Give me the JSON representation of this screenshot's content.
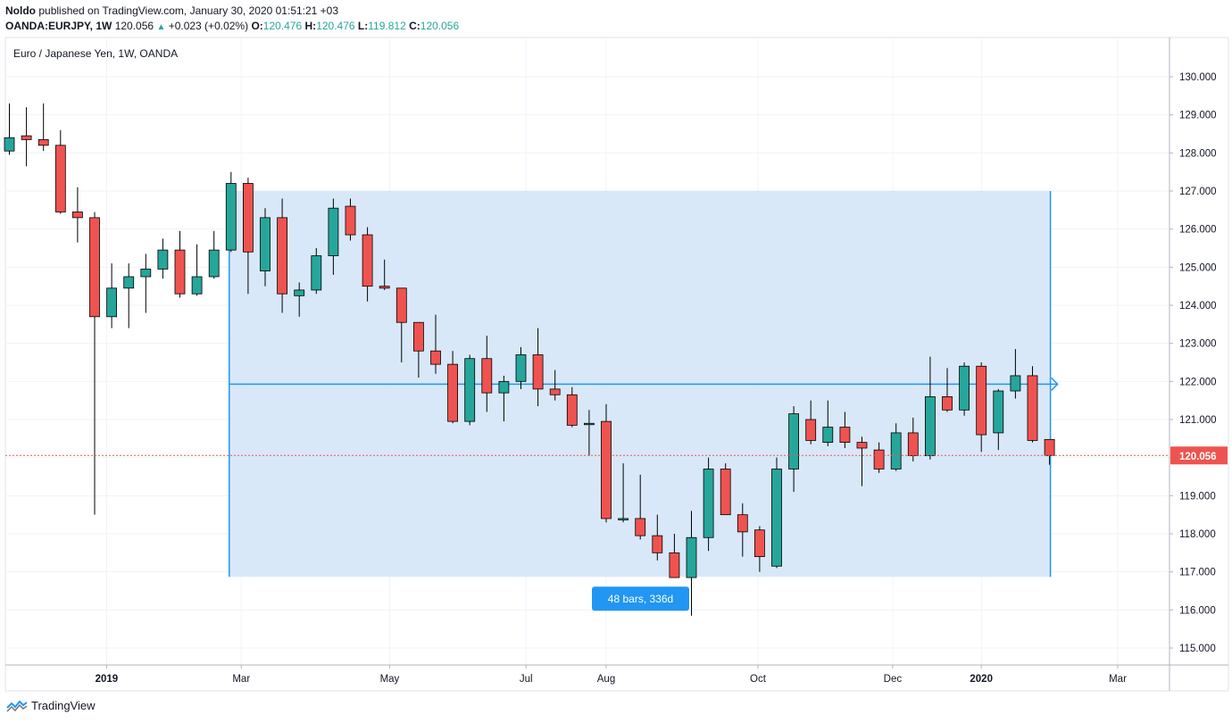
{
  "header": {
    "author": "Noldo",
    "published_text": "published on TradingView.com, January 30, 2020 01:51:21 +03",
    "symbol": "OANDA:EURJPY, 1W",
    "last": "120.056",
    "change": "+0.023 (+0.02%)",
    "o_label": "O:",
    "o": "120.476",
    "h_label": "H:",
    "h": "120.476",
    "l_label": "L:",
    "l": "119.812",
    "c_label": "C:",
    "c": "120.056"
  },
  "footer": {
    "brand": "TradingView"
  },
  "colors": {
    "up": "#26a69a",
    "down": "#ef5350",
    "range_fill": "#d1e4f7",
    "range_line": "#2196f3",
    "price_tag": "#ef5350",
    "bars_label": "#2196f3"
  },
  "chart_data": {
    "type": "candlestick",
    "title": "Euro / Japanese Yen, 1W, OANDA",
    "ylim": [
      114.6,
      130.6
    ],
    "y_ticks": [
      "130.000",
      "129.000",
      "128.000",
      "127.000",
      "126.000",
      "125.000",
      "124.000",
      "123.000",
      "122.000",
      "121.000",
      "120.000",
      "119.000",
      "118.000",
      "117.000",
      "116.000",
      "115.000"
    ],
    "x_ticks": [
      {
        "label": "2019",
        "bold": true,
        "index": 5.7
      },
      {
        "label": "Mar",
        "bold": false,
        "index": 13.6
      },
      {
        "label": "May",
        "bold": false,
        "index": 22.3
      },
      {
        "label": "Jul",
        "bold": false,
        "index": 30.3
      },
      {
        "label": "Aug",
        "bold": false,
        "index": 35.0
      },
      {
        "label": "Oct",
        "bold": false,
        "index": 43.9
      },
      {
        "label": "Dec",
        "bold": false,
        "index": 51.8
      },
      {
        "label": "2020",
        "bold": true,
        "index": 57.0
      },
      {
        "label": "Mar",
        "bold": false,
        "index": 65.0
      }
    ],
    "last_price": "120.056",
    "last_price_value": 120.056,
    "candles": [
      {
        "o": 128.05,
        "h": 129.3,
        "l": 127.95,
        "c": 128.4
      },
      {
        "o": 128.45,
        "h": 129.2,
        "l": 127.65,
        "c": 128.35
      },
      {
        "o": 128.35,
        "h": 129.3,
        "l": 128.05,
        "c": 128.2
      },
      {
        "o": 128.2,
        "h": 128.6,
        "l": 126.4,
        "c": 126.45
      },
      {
        "o": 126.45,
        "h": 127.1,
        "l": 125.65,
        "c": 126.3
      },
      {
        "o": 126.3,
        "h": 126.45,
        "l": 118.5,
        "c": 123.7
      },
      {
        "o": 123.7,
        "h": 125.1,
        "l": 123.4,
        "c": 124.45
      },
      {
        "o": 124.45,
        "h": 125.1,
        "l": 123.4,
        "c": 124.75
      },
      {
        "o": 124.75,
        "h": 125.35,
        "l": 123.8,
        "c": 124.95
      },
      {
        "o": 124.95,
        "h": 125.75,
        "l": 124.7,
        "c": 125.45
      },
      {
        "o": 125.45,
        "h": 125.95,
        "l": 124.2,
        "c": 124.3
      },
      {
        "o": 124.3,
        "h": 125.6,
        "l": 124.25,
        "c": 124.75
      },
      {
        "o": 124.75,
        "h": 125.95,
        "l": 124.7,
        "c": 125.45
      },
      {
        "o": 125.45,
        "h": 127.5,
        "l": 125.4,
        "c": 127.2
      },
      {
        "o": 127.2,
        "h": 127.35,
        "l": 124.3,
        "c": 125.4
      },
      {
        "o": 124.9,
        "h": 126.55,
        "l": 124.5,
        "c": 126.3
      },
      {
        "o": 126.3,
        "h": 126.8,
        "l": 123.8,
        "c": 124.3
      },
      {
        "o": 124.25,
        "h": 124.6,
        "l": 123.7,
        "c": 124.4
      },
      {
        "o": 124.4,
        "h": 125.5,
        "l": 124.3,
        "c": 125.3
      },
      {
        "o": 125.3,
        "h": 126.8,
        "l": 124.8,
        "c": 126.55
      },
      {
        "o": 126.6,
        "h": 126.8,
        "l": 125.7,
        "c": 125.85
      },
      {
        "o": 125.85,
        "h": 126.05,
        "l": 124.1,
        "c": 124.5
      },
      {
        "o": 124.5,
        "h": 125.2,
        "l": 124.4,
        "c": 124.45
      },
      {
        "o": 124.45,
        "h": 124.45,
        "l": 122.5,
        "c": 123.55
      },
      {
        "o": 123.55,
        "h": 123.55,
        "l": 122.1,
        "c": 122.8
      },
      {
        "o": 122.8,
        "h": 123.75,
        "l": 122.2,
        "c": 122.45
      },
      {
        "o": 122.45,
        "h": 122.8,
        "l": 120.9,
        "c": 120.95
      },
      {
        "o": 120.95,
        "h": 122.7,
        "l": 120.85,
        "c": 122.6
      },
      {
        "o": 122.6,
        "h": 123.2,
        "l": 121.2,
        "c": 121.7
      },
      {
        "o": 121.7,
        "h": 122.15,
        "l": 120.95,
        "c": 122.0
      },
      {
        "o": 122.0,
        "h": 122.9,
        "l": 121.8,
        "c": 122.7
      },
      {
        "o": 122.7,
        "h": 123.4,
        "l": 121.35,
        "c": 121.8
      },
      {
        "o": 121.8,
        "h": 122.3,
        "l": 121.5,
        "c": 121.65
      },
      {
        "o": 121.65,
        "h": 121.85,
        "l": 120.8,
        "c": 120.85
      },
      {
        "o": 120.9,
        "h": 121.25,
        "l": 120.05,
        "c": 120.9
      },
      {
        "o": 120.95,
        "h": 121.4,
        "l": 118.3,
        "c": 118.4
      },
      {
        "o": 118.4,
        "h": 119.85,
        "l": 118.3,
        "c": 118.4
      },
      {
        "o": 118.4,
        "h": 119.55,
        "l": 117.85,
        "c": 117.95
      },
      {
        "o": 117.95,
        "h": 118.5,
        "l": 117.3,
        "c": 117.5
      },
      {
        "o": 117.5,
        "h": 118.0,
        "l": 116.9,
        "c": 116.85
      },
      {
        "o": 116.85,
        "h": 118.6,
        "l": 115.85,
        "c": 117.9
      },
      {
        "o": 117.9,
        "h": 120.0,
        "l": 117.55,
        "c": 119.7
      },
      {
        "o": 119.7,
        "h": 119.85,
        "l": 118.5,
        "c": 118.5
      },
      {
        "o": 118.5,
        "h": 118.8,
        "l": 117.4,
        "c": 118.05
      },
      {
        "o": 118.1,
        "h": 118.2,
        "l": 117.0,
        "c": 117.4
      },
      {
        "o": 117.15,
        "h": 120.0,
        "l": 117.1,
        "c": 119.7
      },
      {
        "o": 119.7,
        "h": 121.35,
        "l": 119.1,
        "c": 121.15
      },
      {
        "o": 121.0,
        "h": 121.5,
        "l": 120.35,
        "c": 120.45
      },
      {
        "o": 120.4,
        "h": 121.5,
        "l": 120.3,
        "c": 120.8
      },
      {
        "o": 120.8,
        "h": 121.2,
        "l": 120.25,
        "c": 120.4
      },
      {
        "o": 120.4,
        "h": 120.55,
        "l": 119.25,
        "c": 120.25
      },
      {
        "o": 120.2,
        "h": 120.4,
        "l": 119.6,
        "c": 119.7
      },
      {
        "o": 119.7,
        "h": 120.9,
        "l": 119.65,
        "c": 120.65
      },
      {
        "o": 120.65,
        "h": 121.05,
        "l": 119.9,
        "c": 120.05
      },
      {
        "o": 120.05,
        "h": 122.65,
        "l": 119.95,
        "c": 121.6
      },
      {
        "o": 121.6,
        "h": 122.35,
        "l": 121.2,
        "c": 121.25
      },
      {
        "o": 121.25,
        "h": 122.5,
        "l": 121.1,
        "c": 122.4
      },
      {
        "o": 122.4,
        "h": 122.5,
        "l": 120.15,
        "c": 120.6
      },
      {
        "o": 120.65,
        "h": 121.8,
        "l": 120.2,
        "c": 121.75
      },
      {
        "o": 121.75,
        "h": 122.85,
        "l": 121.55,
        "c": 122.15
      },
      {
        "o": 122.15,
        "h": 122.4,
        "l": 120.4,
        "c": 120.45
      },
      {
        "o": 120.476,
        "h": 120.476,
        "l": 119.812,
        "c": 120.056
      }
    ],
    "range_tool": {
      "start_index": 13.0,
      "end_index": 61.0,
      "top": 127.0,
      "bottom": 116.87,
      "mid": 121.93,
      "label": "48 bars, 336d"
    }
  }
}
